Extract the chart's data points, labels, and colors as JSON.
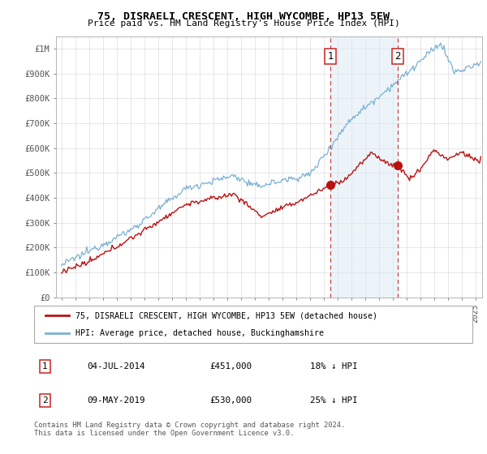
{
  "title": "75, DISRAELI CRESCENT, HIGH WYCOMBE, HP13 5EW",
  "subtitle": "Price paid vs. HM Land Registry's House Price Index (HPI)",
  "ylim": [
    0,
    1050000
  ],
  "yticks": [
    0,
    100000,
    200000,
    300000,
    400000,
    500000,
    600000,
    700000,
    800000,
    900000,
    1000000
  ],
  "ytick_labels": [
    "£0",
    "£100K",
    "£200K",
    "£300K",
    "£400K",
    "£500K",
    "£600K",
    "£700K",
    "£800K",
    "£900K",
    "£1M"
  ],
  "xlim_start": 1994.6,
  "xlim_end": 2025.5,
  "hpi_color": "#7ab0d4",
  "hpi_fill_color": "#daeaf5",
  "price_color": "#bb1111",
  "vline_color": "#cc2222",
  "shade_color": "#daeaf5",
  "transaction1_year": 2014.5,
  "transaction2_year": 2019.36,
  "transaction1_price": 451000,
  "transaction2_price": 530000,
  "legend_label1": "75, DISRAELI CRESCENT, HIGH WYCOMBE, HP13 5EW (detached house)",
  "legend_label2": "HPI: Average price, detached house, Buckinghamshire",
  "table_row1": [
    "1",
    "04-JUL-2014",
    "£451,000",
    "18% ↓ HPI"
  ],
  "table_row2": [
    "2",
    "09-MAY-2019",
    "£530,000",
    "25% ↓ HPI"
  ],
  "footer": "Contains HM Land Registry data © Crown copyright and database right 2024.\nThis data is licensed under the Open Government Licence v3.0.",
  "background_color": "#ffffff",
  "grid_color": "#dddddd"
}
